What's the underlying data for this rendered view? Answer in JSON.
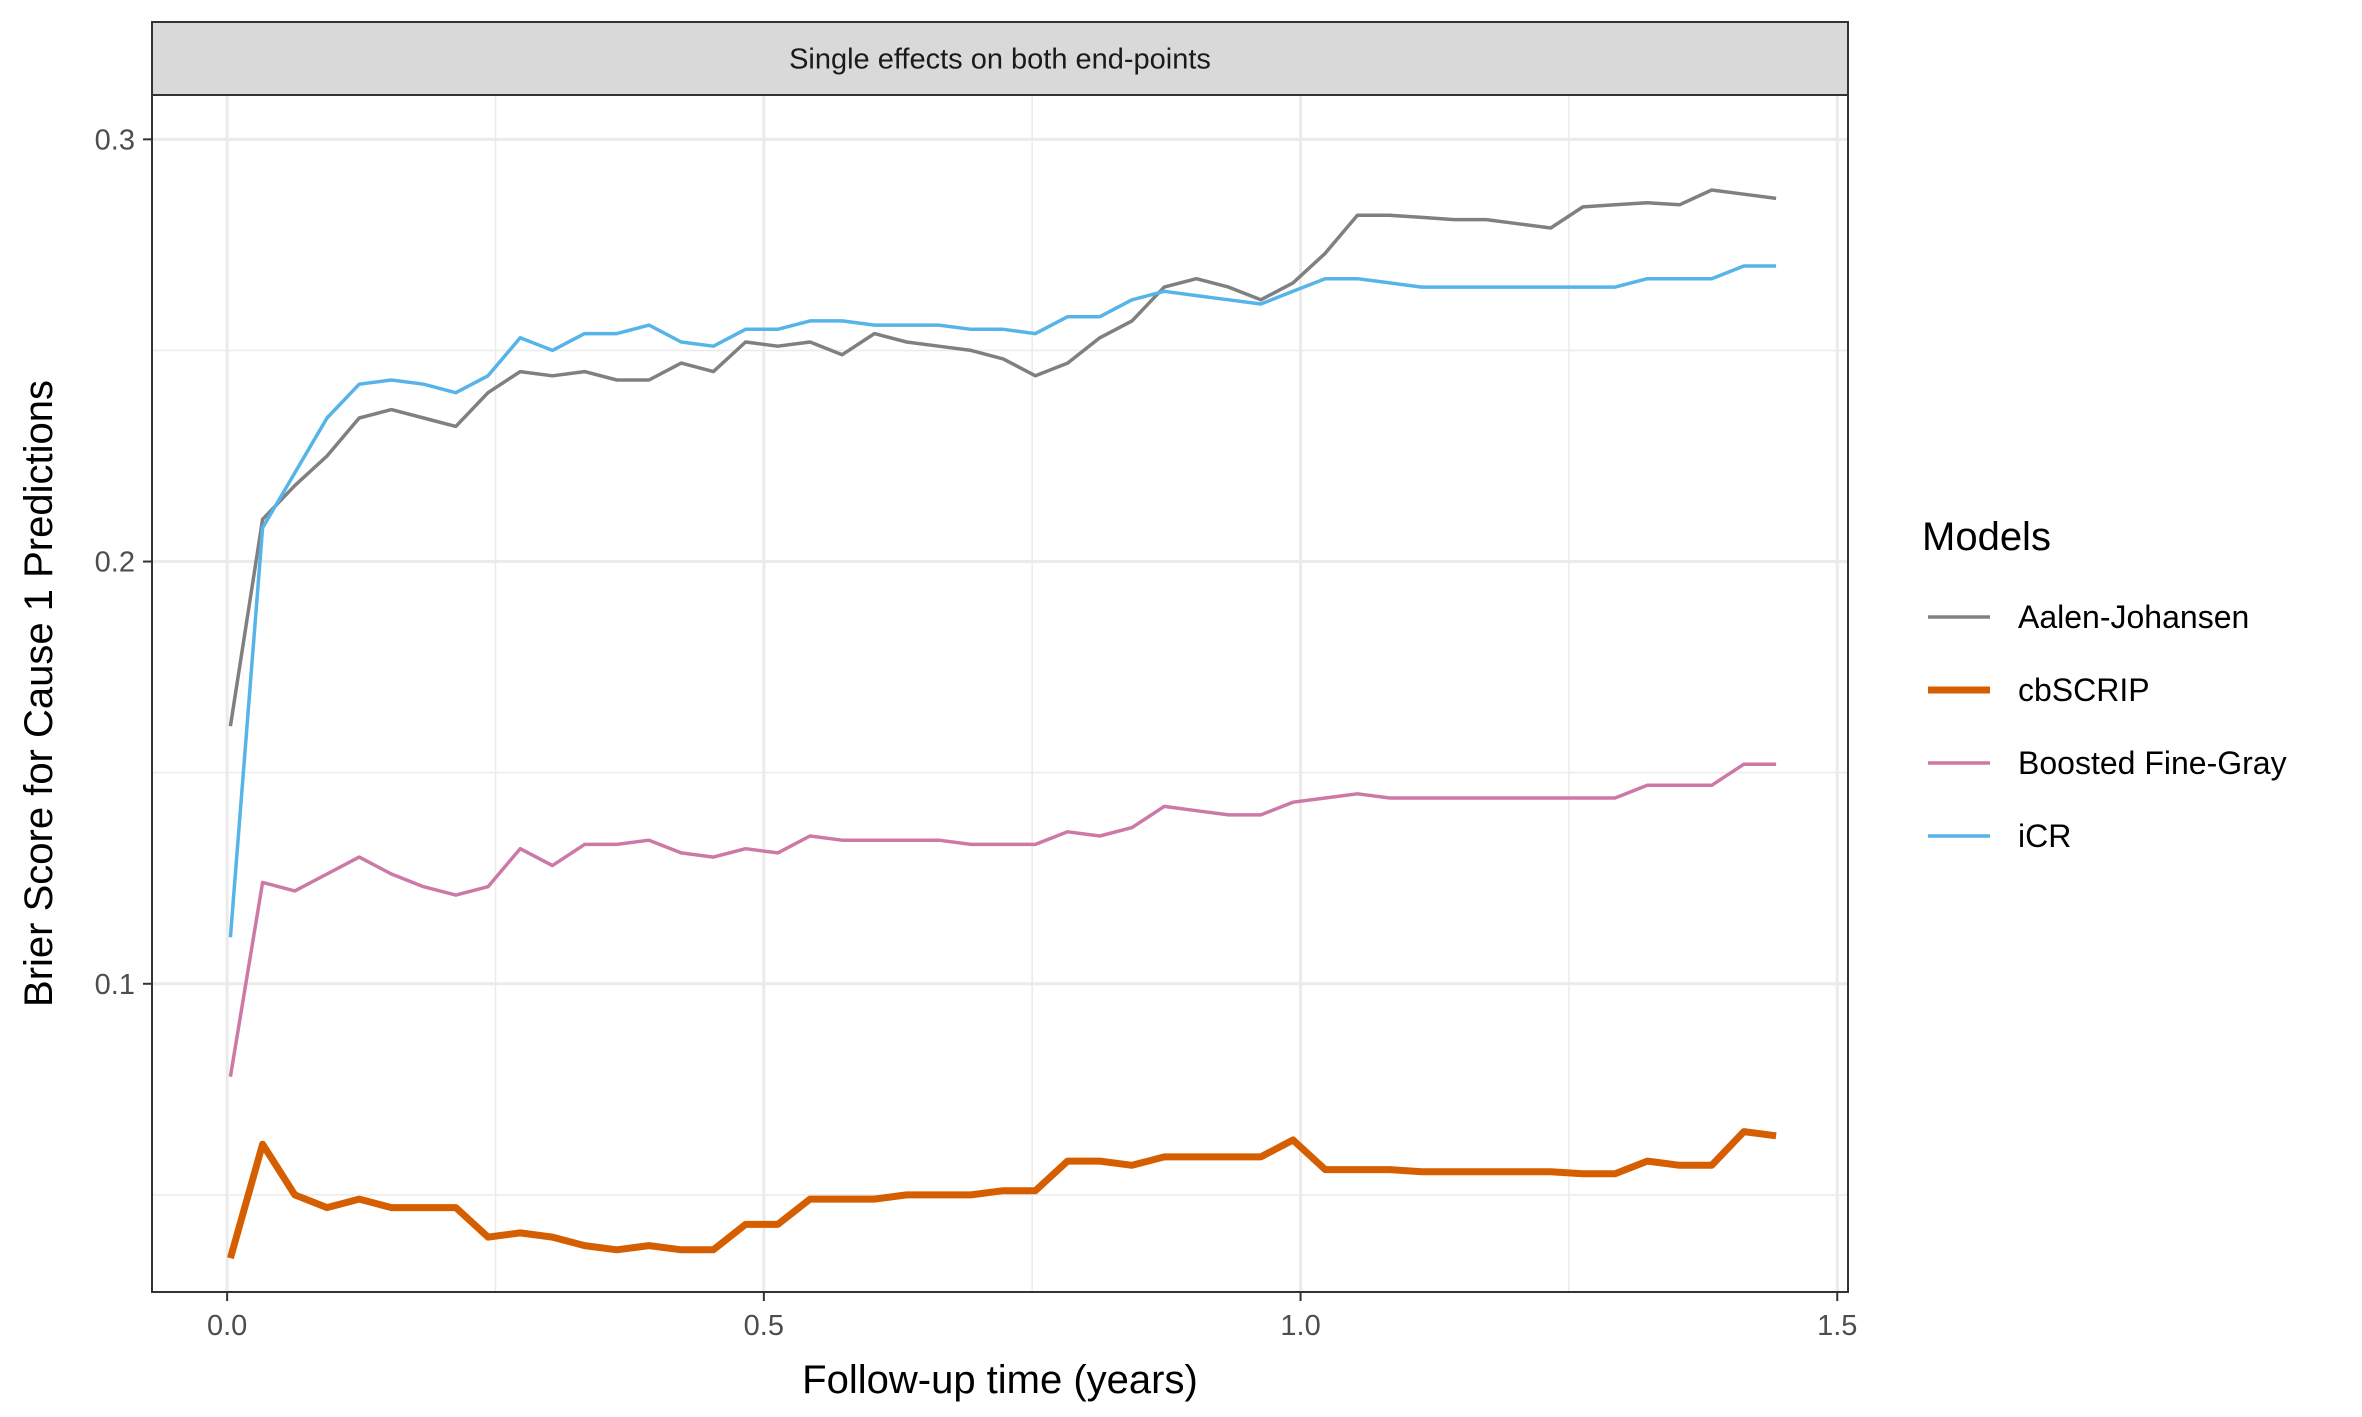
{
  "chart_data": {
    "type": "line",
    "facet_title": "Single effects on both end-points",
    "xlabel": "Follow-up time (years)",
    "ylabel": "Brier Score for Cause 1 Predictions",
    "xlim": [
      -0.07,
      1.51
    ],
    "ylim": [
      0.027,
      0.3105
    ],
    "x_ticks": [
      0.0,
      0.5,
      1.0,
      1.5
    ],
    "x_tick_labels": [
      "0.0",
      "0.5",
      "1.0",
      "1.5"
    ],
    "y_ticks": [
      0.1,
      0.2,
      0.3
    ],
    "y_tick_labels": [
      "0.1",
      "0.2",
      "0.3"
    ],
    "grid": true,
    "legend_title": "Models",
    "legend_position": "right",
    "x": [
      0.003,
      0.033,
      0.063,
      0.093,
      0.123,
      0.153,
      0.183,
      0.213,
      0.243,
      0.273,
      0.303,
      0.333,
      0.363,
      0.393,
      0.423,
      0.453,
      0.483,
      0.513,
      0.543,
      0.573,
      0.603,
      0.633,
      0.663,
      0.693,
      0.723,
      0.753,
      0.783,
      0.813,
      0.843,
      0.873,
      0.903,
      0.933,
      0.963,
      0.993,
      1.023,
      1.053,
      1.083,
      1.113,
      1.143,
      1.173,
      1.203,
      1.233,
      1.263,
      1.293,
      1.323,
      1.353,
      1.383,
      1.413,
      1.443
    ],
    "series": [
      {
        "name": "Aalen-Johansen",
        "color": "#808080",
        "values": [
          0.161,
          0.21,
          0.218,
          0.225,
          0.234,
          0.236,
          0.234,
          0.232,
          0.24,
          0.245,
          0.244,
          0.245,
          0.243,
          0.243,
          0.247,
          0.245,
          0.252,
          0.251,
          0.252,
          0.249,
          0.254,
          0.252,
          0.251,
          0.25,
          0.248,
          0.244,
          0.247,
          0.253,
          0.257,
          0.265,
          0.267,
          0.265,
          0.262,
          0.266,
          0.273,
          0.282,
          0.282,
          0.2815,
          0.281,
          0.281,
          0.28,
          0.279,
          0.284,
          0.2845,
          0.285,
          0.2845,
          0.288,
          0.287,
          0.286
        ]
      },
      {
        "name": "cbSCRIP",
        "color": "#D55E00",
        "values": [
          0.035,
          0.062,
          0.05,
          0.047,
          0.049,
          0.047,
          0.047,
          0.047,
          0.04,
          0.041,
          0.04,
          0.038,
          0.037,
          0.038,
          0.037,
          0.037,
          0.043,
          0.043,
          0.049,
          0.049,
          0.049,
          0.05,
          0.05,
          0.05,
          0.051,
          0.051,
          0.058,
          0.058,
          0.057,
          0.059,
          0.059,
          0.059,
          0.059,
          0.063,
          0.056,
          0.056,
          0.056,
          0.0555,
          0.0555,
          0.0555,
          0.0555,
          0.0555,
          0.055,
          0.055,
          0.058,
          0.057,
          0.057,
          0.065,
          0.064
        ]
      },
      {
        "name": "Boosted Fine-Gray",
        "color": "#CC79A7",
        "values": [
          0.078,
          0.124,
          0.122,
          0.126,
          0.13,
          0.126,
          0.123,
          0.121,
          0.123,
          0.132,
          0.128,
          0.133,
          0.133,
          0.134,
          0.131,
          0.13,
          0.132,
          0.131,
          0.135,
          0.134,
          0.134,
          0.134,
          0.134,
          0.133,
          0.133,
          0.133,
          0.136,
          0.135,
          0.137,
          0.142,
          0.141,
          0.14,
          0.14,
          0.143,
          0.144,
          0.145,
          0.144,
          0.144,
          0.144,
          0.144,
          0.144,
          0.144,
          0.144,
          0.144,
          0.147,
          0.147,
          0.147,
          0.152,
          0.152
        ]
      },
      {
        "name": "iCR",
        "color": "#56B4E9",
        "values": [
          0.111,
          0.208,
          0.221,
          0.234,
          0.242,
          0.243,
          0.242,
          0.24,
          0.244,
          0.253,
          0.25,
          0.254,
          0.254,
          0.256,
          0.252,
          0.251,
          0.255,
          0.255,
          0.257,
          0.257,
          0.256,
          0.256,
          0.256,
          0.255,
          0.255,
          0.254,
          0.258,
          0.258,
          0.262,
          0.264,
          0.263,
          0.262,
          0.261,
          0.264,
          0.267,
          0.267,
          0.266,
          0.265,
          0.265,
          0.265,
          0.265,
          0.265,
          0.265,
          0.265,
          0.267,
          0.267,
          0.267,
          0.27,
          0.27
        ]
      }
    ]
  }
}
